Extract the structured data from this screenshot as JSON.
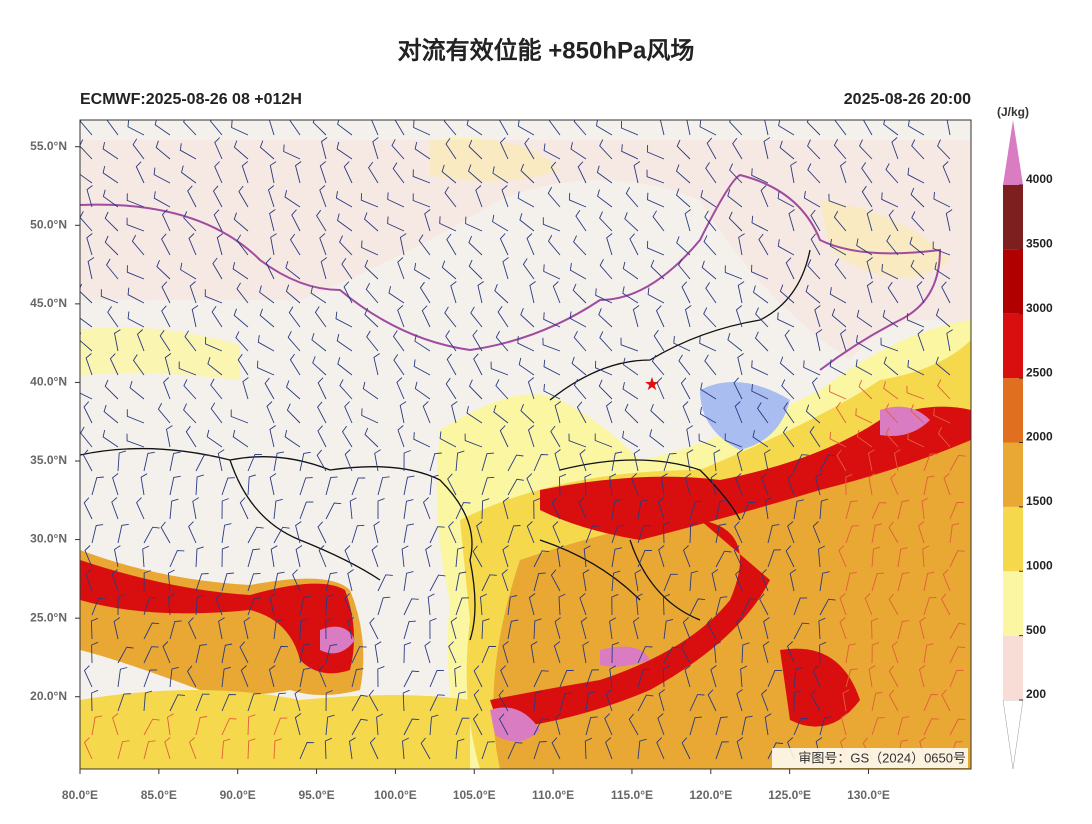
{
  "title": "对流有效位能 +850hPa风场",
  "subtitle_left": "ECMWF:2025-08-26 08 +012H",
  "subtitle_right": "2025-08-26 20:00",
  "credit": "审图号：GS（2024）0650号",
  "map": {
    "lon_range": [
      80,
      136.5
    ],
    "lat_range": [
      15.4,
      56.7
    ],
    "lon_ticks": [
      {
        "value": 80,
        "label": "80.0°E"
      },
      {
        "value": 85,
        "label": "85.0°E"
      },
      {
        "value": 90,
        "label": "90.0°E"
      },
      {
        "value": 95,
        "label": "95.0°E"
      },
      {
        "value": 100,
        "label": "100.0°E"
      },
      {
        "value": 105,
        "label": "105.0°E"
      },
      {
        "value": 110,
        "label": "110.0°E"
      },
      {
        "value": 115,
        "label": "115.0°E"
      },
      {
        "value": 120,
        "label": "120.0°E"
      },
      {
        "value": 125,
        "label": "125.0°E"
      },
      {
        "value": 130,
        "label": "130.0°E"
      }
    ],
    "lat_ticks": [
      {
        "value": 20,
        "label": "20.0°N"
      },
      {
        "value": 25,
        "label": "25.0°N"
      },
      {
        "value": 30,
        "label": "30.0°N"
      },
      {
        "value": 35,
        "label": "35.0°N"
      },
      {
        "value": 40,
        "label": "40.0°N"
      },
      {
        "value": 45,
        "label": "45.0°N"
      },
      {
        "value": 50,
        "label": "50.0°N"
      },
      {
        "value": 55,
        "label": "55.0°N"
      }
    ]
  },
  "colorbar": {
    "unit": "(J/kg)",
    "levels": [
      200,
      500,
      1000,
      1500,
      2000,
      2500,
      3000,
      3500,
      4000
    ],
    "colors": [
      "#ffffff",
      "#f8ddd6",
      "#fbf6a2",
      "#f5d84c",
      "#e9a733",
      "#e06f1f",
      "#d90f0f",
      "#b00000",
      "#7e1f1f",
      "#d97cc2"
    ]
  }
}
